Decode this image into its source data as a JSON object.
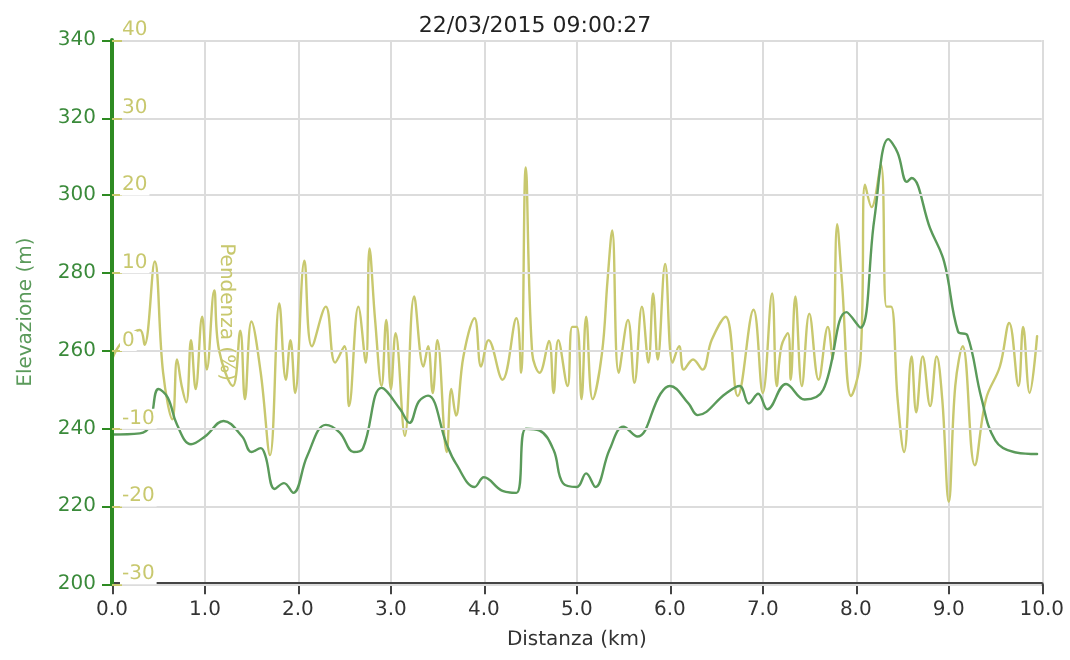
{
  "chart_data": {
    "type": "line",
    "title": "22/03/2015 09:00:27",
    "xlabel": "Distanza (km)",
    "ylabel": "Elevazione (m)",
    "y2label": "Pendenza (%)",
    "xlim": [
      0,
      10
    ],
    "xticks": [
      {
        "value": 0,
        "label": "0.0"
      },
      {
        "value": 1,
        "label": "1.0"
      },
      {
        "value": 2,
        "label": "2.0"
      },
      {
        "value": 3,
        "label": "3.0"
      },
      {
        "value": 4,
        "label": "4.0"
      },
      {
        "value": 5,
        "label": "5.0"
      },
      {
        "value": 6,
        "label": "6.0"
      },
      {
        "value": 7,
        "label": "7.0"
      },
      {
        "value": 8,
        "label": "8.0"
      },
      {
        "value": 9,
        "label": "9.0"
      },
      {
        "value": 10,
        "label": "10.0"
      }
    ],
    "ylim": [
      200,
      340
    ],
    "yticks": [
      200,
      220,
      240,
      260,
      280,
      300,
      320,
      340
    ],
    "y2lim": [
      -30,
      40
    ],
    "y2ticks": [
      -30,
      -20,
      -10,
      0,
      10,
      20,
      30,
      40
    ],
    "grid": true,
    "marker": "none",
    "line_style": "solid",
    "series": [
      {
        "color": "#c8c86e",
        "axis": "y2",
        "x": [
          0,
          0.1,
          0.3,
          0.35,
          0.46,
          0.55,
          0.65,
          0.7,
          0.75,
          0.8,
          0.85,
          0.9,
          0.97,
          1.02,
          1.1,
          1.15,
          1.3,
          1.38,
          1.43,
          1.5,
          1.6,
          1.7,
          1.8,
          1.87,
          1.92,
          1.97,
          2.07,
          2.15,
          2.3,
          2.4,
          2.5,
          2.55,
          2.65,
          2.73,
          2.77,
          2.83,
          2.9,
          2.95,
          3.0,
          3.05,
          3.15,
          3.25,
          3.35,
          3.4,
          3.45,
          3.5,
          3.6,
          3.65,
          3.7,
          3.78,
          3.9,
          3.97,
          4.05,
          4.2,
          4.35,
          4.4,
          4.45,
          4.52,
          4.6,
          4.7,
          4.75,
          4.8,
          4.9,
          4.95,
          5.0,
          5.05,
          5.1,
          5.17,
          5.27,
          5.33,
          5.38,
          5.45,
          5.55,
          5.62,
          5.7,
          5.77,
          5.82,
          5.87,
          5.95,
          6.03,
          6.1,
          6.15,
          6.25,
          6.35,
          6.45,
          6.6,
          6.73,
          6.9,
          7.0,
          7.1,
          7.15,
          7.2,
          7.27,
          7.3,
          7.35,
          7.42,
          7.5,
          7.6,
          7.7,
          7.75,
          7.8,
          7.85,
          7.95,
          8.05,
          8.1,
          8.17,
          8.27,
          8.33,
          8.38,
          8.45,
          8.52,
          8.6,
          8.65,
          8.72,
          8.8,
          8.87,
          8.93,
          9.0,
          9.07,
          9.15,
          9.28,
          9.4,
          9.55,
          9.65,
          9.75,
          9.8,
          9.87,
          9.95
        ],
        "values": [
          -1.1,
          1,
          2.7,
          0.8,
          11.5,
          -2.8,
          -8.8,
          -1.1,
          -4.5,
          -6.6,
          1.4,
          -4.9,
          4.4,
          -2.4,
          7.8,
          0.2,
          -4.5,
          2.6,
          -6.2,
          3.8,
          -2.8,
          -13.4,
          6.1,
          -3.7,
          1.4,
          -5.4,
          11.6,
          0.6,
          5.7,
          -1.5,
          0.6,
          -7.1,
          5.7,
          -1.5,
          13.2,
          4,
          -4.5,
          4,
          -4.9,
          2.3,
          -10.9,
          7,
          -2,
          0.6,
          -5.4,
          1.4,
          -13,
          -4.9,
          -8.3,
          -0.7,
          4.2,
          -2,
          1.4,
          -3.7,
          4.2,
          -2.8,
          23.6,
          -0.3,
          -2.8,
          1.3,
          -5.4,
          1.4,
          -4.5,
          3.1,
          3.1,
          -6.2,
          4.4,
          -6.2,
          -0.3,
          9.1,
          15.5,
          -2.8,
          4,
          -4.1,
          5.7,
          -1.5,
          7.4,
          -1.1,
          11.2,
          -1.5,
          0.6,
          -2.4,
          -1.1,
          -2.4,
          1.4,
          4.4,
          -5.8,
          5.3,
          -5.4,
          7.4,
          -4.5,
          0.6,
          2.3,
          -3.7,
          7,
          -4.5,
          4.8,
          -3.7,
          3.1,
          -1.1,
          16.3,
          9.1,
          -5.8,
          -1.1,
          21.4,
          18.5,
          24,
          5.7,
          5.7,
          -6.2,
          -13,
          -0.7,
          -7.9,
          -0.7,
          -7.1,
          -0.7,
          -6.2,
          -19.4,
          -4.5,
          0.6,
          -14.7,
          -6.2,
          -2,
          3.6,
          -4.5,
          3.1,
          -5.4,
          1.9
        ]
      },
      {
        "color": "#5a9a5a",
        "x": [
          0,
          0.3,
          0.4,
          0.5,
          0.6,
          0.7,
          0.85,
          1.0,
          1.2,
          1.4,
          1.5,
          1.6,
          1.65,
          1.75,
          1.85,
          1.95,
          2.1,
          2.3,
          2.45,
          2.6,
          2.7,
          2.9,
          3.1,
          3.2,
          3.3,
          3.4,
          3.6,
          3.7,
          3.9,
          4.0,
          4.2,
          4.35,
          4.45,
          4.6,
          4.75,
          4.85,
          5.0,
          5.1,
          5.2,
          5.35,
          5.5,
          5.65,
          5.9,
          6.0,
          6.2,
          6.3,
          6.6,
          6.75,
          6.85,
          6.95,
          7.05,
          7.25,
          7.45,
          7.65,
          7.9,
          8.05,
          8.2,
          8.35,
          8.45,
          8.55,
          8.6,
          8.8,
          8.95,
          9.1,
          9.2,
          9.35,
          9.5,
          9.7,
          9.95
        ],
        "values": [
          238.5,
          238.8,
          240.5,
          250.2,
          248,
          241,
          236,
          238,
          242,
          238,
          234,
          235,
          233,
          224.5,
          226,
          223.5,
          233,
          241,
          239,
          234,
          235,
          250.5,
          245,
          241.5,
          247,
          248.5,
          236,
          231,
          225,
          227.5,
          224,
          223.5,
          240,
          239.5,
          234.5,
          226,
          225,
          228.5,
          225,
          234.5,
          240.5,
          238,
          249,
          251,
          246.5,
          243.5,
          249,
          251,
          246.5,
          249,
          245,
          251.5,
          247.5,
          250,
          270,
          266,
          294,
          314.5,
          311,
          303.5,
          304.5,
          291.5,
          283,
          265,
          264,
          248,
          237,
          234,
          233.5
        ]
      }
    ]
  }
}
